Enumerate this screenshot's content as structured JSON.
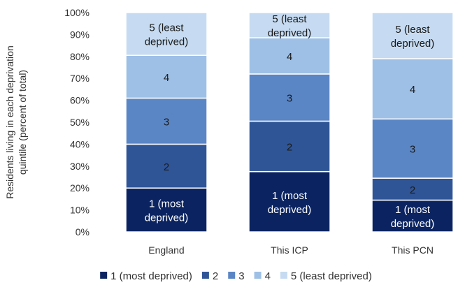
{
  "chart_data": {
    "type": "bar",
    "stacked": true,
    "percent_stacked": true,
    "categories": [
      "England",
      "This ICP",
      "This PCN"
    ],
    "series": [
      {
        "name": "1 (most deprived)",
        "segment_label": [
          "1 (most",
          "deprived)"
        ],
        "values": [
          20.0,
          27.5,
          14.5
        ],
        "color": "#0b2461",
        "label_color": "#ffffff"
      },
      {
        "name": "2",
        "segment_label": [
          "2"
        ],
        "values": [
          20.0,
          23.0,
          10.0
        ],
        "color": "#2f5597",
        "label_color": "#1a1a1a"
      },
      {
        "name": "3",
        "segment_label": [
          "3"
        ],
        "values": [
          21.0,
          21.5,
          27.0
        ],
        "color": "#5b86c5",
        "label_color": "#1a1a1a"
      },
      {
        "name": "4",
        "segment_label": [
          "4"
        ],
        "values": [
          19.5,
          16.5,
          27.5
        ],
        "color": "#9ec0e6",
        "label_color": "#1a1a1a"
      },
      {
        "name": "5 (least deprived)",
        "segment_label": [
          "5 (least",
          "deprived)"
        ],
        "values": [
          19.5,
          11.5,
          21.0
        ],
        "color": "#c6dbf1",
        "label_color": "#1a1a1a"
      }
    ],
    "ylabel": [
      "Residents living in each deprivation",
      "quintile (percent of total)"
    ],
    "xlabel": "",
    "ylim": [
      0,
      100
    ],
    "yticks": [
      "0%",
      "10%",
      "20%",
      "30%",
      "40%",
      "50%",
      "60%",
      "70%",
      "80%",
      "90%",
      "100%"
    ],
    "grid": false,
    "legend_position": "bottom"
  }
}
